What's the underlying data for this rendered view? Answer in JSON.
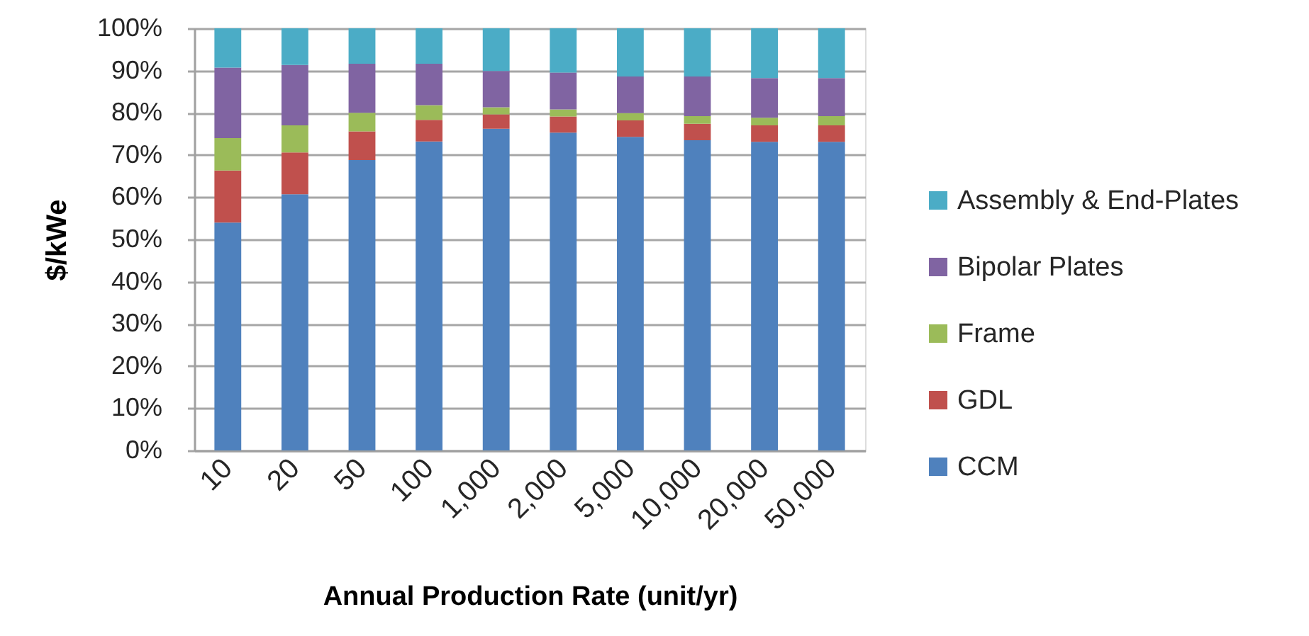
{
  "chart_data": {
    "type": "bar",
    "stacked": true,
    "xlabel": "Annual Production Rate (unit/yr)",
    "ylabel": "$/kWe",
    "categories": [
      "10",
      "20",
      "50",
      "100",
      "1,000",
      "2,000",
      "5,000",
      "10,000",
      "20,000",
      "50,000"
    ],
    "series": [
      {
        "name": "CCM",
        "color": "#4f81bd",
        "values": [
          54.0,
          60.7,
          68.8,
          73.2,
          76.2,
          75.3,
          74.3,
          73.5,
          73.1,
          73.1
        ]
      },
      {
        "name": "GDL",
        "color": "#c0504d",
        "values": [
          12.3,
          9.9,
          6.8,
          5.1,
          3.4,
          3.8,
          3.9,
          3.9,
          3.9,
          3.9
        ]
      },
      {
        "name": "Frame",
        "color": "#9bbb59",
        "values": [
          7.7,
          6.4,
          4.4,
          3.5,
          1.7,
          1.7,
          1.7,
          1.8,
          1.8,
          2.2
        ]
      },
      {
        "name": "Bipolar Plates",
        "color": "#8064a2",
        "values": [
          16.7,
          14.3,
          11.6,
          9.8,
          8.6,
          8.7,
          8.7,
          9.4,
          9.4,
          9.0
        ]
      },
      {
        "name": "Assembly & End-Plates",
        "color": "#4bacc6",
        "values": [
          9.3,
          8.7,
          8.4,
          8.4,
          10.1,
          10.5,
          11.4,
          11.4,
          11.8,
          11.8
        ]
      }
    ],
    "ylim": [
      0,
      100
    ],
    "yticks": [
      {
        "value": 0,
        "label": "0%"
      },
      {
        "value": 10,
        "label": "10%"
      },
      {
        "value": 20,
        "label": "20%"
      },
      {
        "value": 30,
        "label": "30%"
      },
      {
        "value": 40,
        "label": "40%"
      },
      {
        "value": 50,
        "label": "50%"
      },
      {
        "value": 60,
        "label": "60%"
      },
      {
        "value": 70,
        "label": "70%"
      },
      {
        "value": 80,
        "label": "80%"
      },
      {
        "value": 90,
        "label": "90%"
      },
      {
        "value": 100,
        "label": "100%"
      }
    ],
    "grid": "y",
    "legend": "right"
  }
}
